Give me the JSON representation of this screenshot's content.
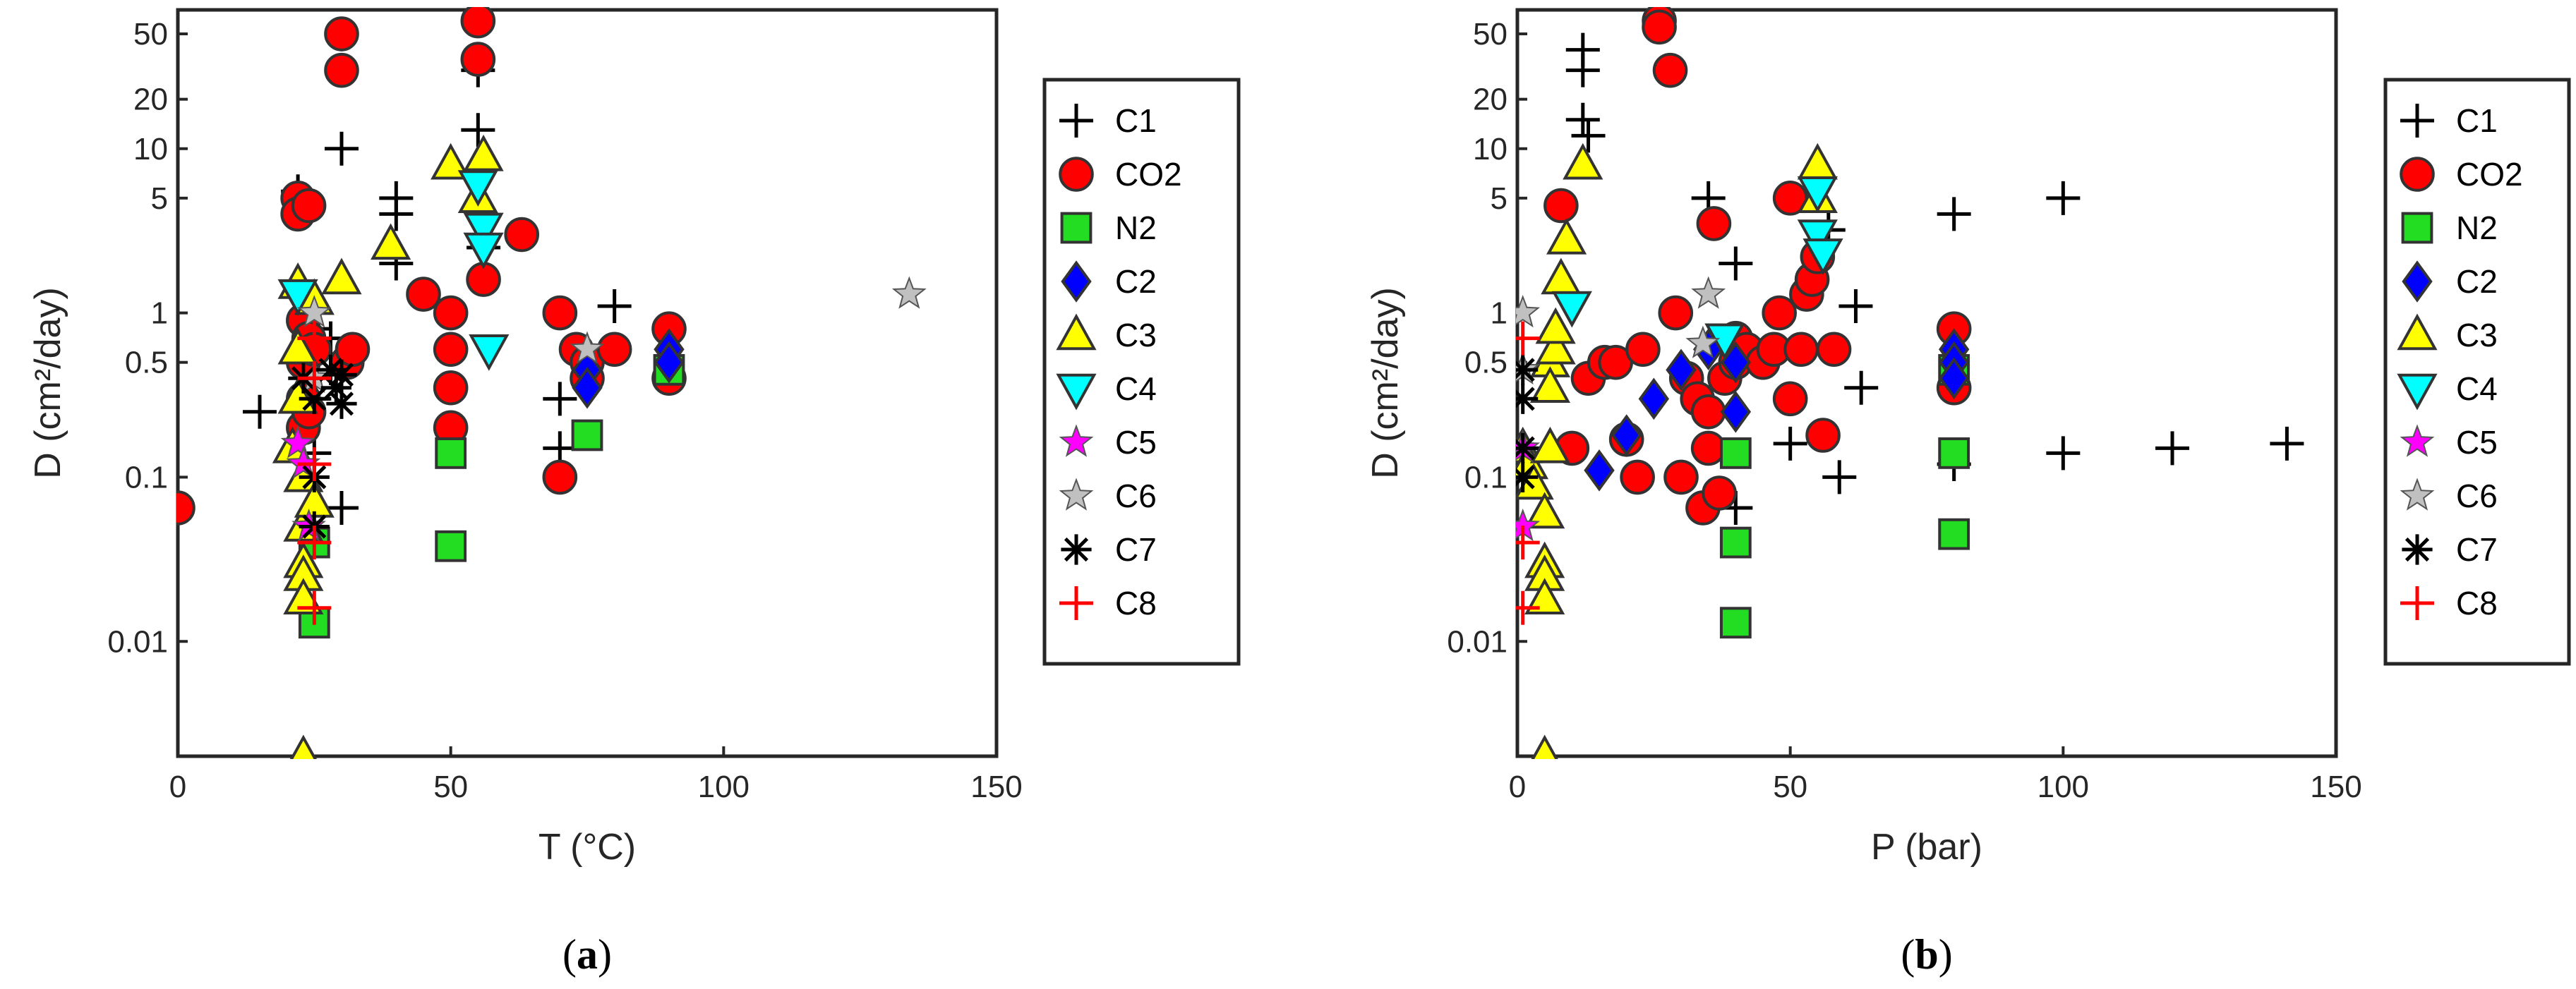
{
  "legend": {
    "entries": [
      {
        "name": "C1",
        "marker": "plus",
        "color": "#000000"
      },
      {
        "name": "CO2",
        "marker": "circle",
        "color": "#ff0000"
      },
      {
        "name": "N2",
        "marker": "square",
        "color": "#22dd22"
      },
      {
        "name": "C2",
        "marker": "diamond",
        "color": "#0000ff"
      },
      {
        "name": "C3",
        "marker": "triangle-up",
        "color": "#ffff00"
      },
      {
        "name": "C4",
        "marker": "triangle-down",
        "color": "#00ffff"
      },
      {
        "name": "C5",
        "marker": "star5",
        "color": "#ff00ff"
      },
      {
        "name": "C6",
        "marker": "star5",
        "color": "#c0c0c0"
      },
      {
        "name": "C7",
        "marker": "asterisk",
        "color": "#000000"
      },
      {
        "name": "C8",
        "marker": "plus",
        "color": "#ff0000"
      }
    ]
  },
  "chart_data": [
    {
      "type": "scatter",
      "panel_label": "(a)",
      "panel_letter": "a",
      "xlabel": "T (°C)",
      "ylabel": "D (cm²/day)",
      "xlim": [
        0,
        150
      ],
      "ylim": [
        0.002,
        70
      ],
      "yscale": "log",
      "xticks": [
        0,
        50,
        100,
        150
      ],
      "yticks": [
        0.01,
        0.1,
        0.5,
        1,
        5,
        10,
        20,
        50
      ],
      "ytick_labels": [
        "0.01",
        "0.1",
        "0.5",
        "1",
        "5",
        "10",
        "20",
        "50"
      ],
      "series": [
        {
          "name": "C1",
          "points": [
            [
              15,
              0.25
            ],
            [
              22,
              5.5
            ],
            [
              25,
              0.8
            ],
            [
              25,
              0.3
            ],
            [
              25,
              0.14
            ],
            [
              28,
              0.7
            ],
            [
              30,
              10
            ],
            [
              30,
              0.065
            ],
            [
              40,
              5
            ],
            [
              40,
              4
            ],
            [
              40,
              2
            ],
            [
              55,
              13
            ],
            [
              55,
              30
            ],
            [
              56,
              2.5
            ],
            [
              70,
              0.3
            ],
            [
              70,
              0.15
            ],
            [
              80,
              1.1
            ]
          ]
        },
        {
          "name": "CO2",
          "points": [
            [
              0,
              0.065
            ],
            [
              22,
              5
            ],
            [
              22,
              4
            ],
            [
              23,
              0.9
            ],
            [
              23,
              0.5
            ],
            [
              23,
              0.3
            ],
            [
              23,
              0.2
            ],
            [
              24,
              4.5
            ],
            [
              24,
              0.7
            ],
            [
              24,
              0.25
            ],
            [
              25,
              0.6
            ],
            [
              30,
              50
            ],
            [
              30,
              30
            ],
            [
              31,
              0.5
            ],
            [
              32,
              0.6
            ],
            [
              45,
              1.3
            ],
            [
              50,
              1
            ],
            [
              50,
              0.6
            ],
            [
              50,
              0.35
            ],
            [
              50,
              0.2
            ],
            [
              55,
              60
            ],
            [
              55,
              35
            ],
            [
              56,
              1.6
            ],
            [
              63,
              3
            ],
            [
              70,
              0.1
            ],
            [
              70,
              1
            ],
            [
              73,
              0.6
            ],
            [
              75,
              0.5
            ],
            [
              75,
              0.4
            ],
            [
              80,
              0.6
            ],
            [
              90,
              0.8
            ],
            [
              90,
              0.4
            ]
          ]
        },
        {
          "name": "N2",
          "points": [
            [
              25,
              0.04
            ],
            [
              25,
              0.013
            ],
            [
              50,
              0.14
            ],
            [
              50,
              0.038
            ],
            [
              75,
              0.18
            ],
            [
              90,
              0.45
            ]
          ]
        },
        {
          "name": "C2",
          "points": [
            [
              75,
              0.45
            ],
            [
              75,
              0.35
            ],
            [
              90,
              0.6
            ],
            [
              90,
              0.5
            ]
          ]
        },
        {
          "name": "C3",
          "points": [
            [
              21,
              0.15
            ],
            [
              22,
              1.5
            ],
            [
              22,
              0.6
            ],
            [
              22,
              0.3
            ],
            [
              23,
              0.1
            ],
            [
              23,
              0.05
            ],
            [
              23,
              0.03
            ],
            [
              23,
              0.025
            ],
            [
              23,
              0.018
            ],
            [
              23,
              0.002
            ],
            [
              25,
              1.2
            ],
            [
              25,
              0.07
            ],
            [
              30,
              1.6
            ],
            [
              39,
              2.6
            ],
            [
              50,
              8
            ],
            [
              55,
              5
            ],
            [
              56,
              9
            ]
          ]
        },
        {
          "name": "C4",
          "points": [
            [
              22,
              1.3
            ],
            [
              55,
              6
            ],
            [
              56,
              3.3
            ],
            [
              56,
              2.5
            ],
            [
              57,
              0.6
            ]
          ]
        },
        {
          "name": "C5",
          "points": [
            [
              22,
              0.16
            ],
            [
              23,
              0.12
            ],
            [
              24,
              0.05
            ]
          ]
        },
        {
          "name": "C6",
          "points": [
            [
              25,
              1
            ],
            [
              25,
              0.4
            ],
            [
              75,
              0.6
            ],
            [
              134,
              1.3
            ]
          ]
        },
        {
          "name": "C7",
          "points": [
            [
              23,
              0.4
            ],
            [
              25,
              0.3
            ],
            [
              25,
              0.1
            ],
            [
              25,
              0.05
            ],
            [
              28,
              0.45
            ],
            [
              29,
              0.35
            ],
            [
              30,
              0.42
            ],
            [
              30,
              0.28
            ]
          ]
        },
        {
          "name": "C8",
          "points": [
            [
              25,
              0.7
            ],
            [
              25,
              0.4
            ],
            [
              25,
              0.12
            ],
            [
              25,
              0.04
            ],
            [
              25,
              0.016
            ]
          ]
        }
      ]
    },
    {
      "type": "scatter",
      "panel_label": "(b)",
      "panel_letter": "b",
      "xlabel": "P (bar)",
      "ylabel": "D (cm²/day)",
      "xlim": [
        0,
        150
      ],
      "ylim": [
        0.002,
        70
      ],
      "yscale": "log",
      "xticks": [
        0,
        50,
        100,
        150
      ],
      "yticks": [
        0.01,
        0.1,
        0.5,
        1,
        5,
        10,
        20,
        50
      ],
      "ytick_labels": [
        "0.01",
        "0.1",
        "0.5",
        "1",
        "5",
        "10",
        "20",
        "50"
      ],
      "series": [
        {
          "name": "C1",
          "points": [
            [
              1,
              0.15
            ],
            [
              1,
              0.1
            ],
            [
              12,
              40
            ],
            [
              12,
              30
            ],
            [
              12,
              15
            ],
            [
              13,
              12
            ],
            [
              35,
              5
            ],
            [
              40,
              2
            ],
            [
              40,
              0.065
            ],
            [
              50,
              0.16
            ],
            [
              57,
              3.2
            ],
            [
              59,
              0.1
            ],
            [
              62,
              1.1
            ],
            [
              63,
              0.35
            ],
            [
              80,
              4
            ],
            [
              80,
              0.12
            ],
            [
              100,
              5
            ],
            [
              100,
              0.14
            ],
            [
              120,
              0.15
            ],
            [
              141,
              0.16
            ]
          ]
        },
        {
          "name": "CO2",
          "points": [
            [
              8,
              4.5
            ],
            [
              10,
              0.15
            ],
            [
              13,
              0.4
            ],
            [
              16,
              0.5
            ],
            [
              18,
              0.5
            ],
            [
              20,
              0.17
            ],
            [
              22,
              0.1
            ],
            [
              23,
              0.6
            ],
            [
              26,
              60
            ],
            [
              26,
              55
            ],
            [
              28,
              30
            ],
            [
              29,
              1
            ],
            [
              30,
              0.1
            ],
            [
              31,
              0.4
            ],
            [
              33,
              0.3
            ],
            [
              34,
              0.065
            ],
            [
              35,
              0.15
            ],
            [
              35,
              0.25
            ],
            [
              36,
              3.5
            ],
            [
              37,
              0.08
            ],
            [
              38,
              0.4
            ],
            [
              40,
              0.5
            ],
            [
              40,
              0.7
            ],
            [
              42,
              0.6
            ],
            [
              45,
              0.5
            ],
            [
              47,
              0.6
            ],
            [
              48,
              1
            ],
            [
              50,
              5
            ],
            [
              50,
              0.3
            ],
            [
              52,
              0.6
            ],
            [
              53,
              1.3
            ],
            [
              54,
              1.6
            ],
            [
              55,
              2.2
            ],
            [
              56,
              0.18
            ],
            [
              58,
              0.6
            ],
            [
              80,
              0.8
            ],
            [
              80,
              0.35
            ]
          ]
        },
        {
          "name": "N2",
          "points": [
            [
              40,
              0.04
            ],
            [
              40,
              0.013
            ],
            [
              40,
              0.14
            ],
            [
              80,
              0.14
            ],
            [
              80,
              0.045
            ],
            [
              80,
              0.45
            ]
          ]
        },
        {
          "name": "C2",
          "points": [
            [
              15,
              0.11
            ],
            [
              20,
              0.18
            ],
            [
              25,
              0.3
            ],
            [
              30,
              0.45
            ],
            [
              35,
              0.6
            ],
            [
              40,
              0.5
            ],
            [
              40,
              0.25
            ],
            [
              80,
              0.6
            ],
            [
              80,
              0.5
            ],
            [
              80,
              0.4
            ]
          ]
        },
        {
          "name": "C3",
          "points": [
            [
              1,
              0.15
            ],
            [
              2,
              0.12
            ],
            [
              3,
              0.09
            ],
            [
              5,
              0.06
            ],
            [
              5,
              0.03
            ],
            [
              5,
              0.025
            ],
            [
              5,
              0.018
            ],
            [
              5,
              0.002
            ],
            [
              6,
              0.5
            ],
            [
              6,
              0.35
            ],
            [
              6,
              0.15
            ],
            [
              7,
              0.6
            ],
            [
              7,
              0.8
            ],
            [
              8,
              1.6
            ],
            [
              9,
              2.8
            ],
            [
              12,
              8
            ],
            [
              55,
              8
            ],
            [
              55,
              5
            ]
          ]
        },
        {
          "name": "C4",
          "points": [
            [
              10,
              1.1
            ],
            [
              38,
              0.7
            ],
            [
              55,
              5.5
            ],
            [
              55,
              3
            ],
            [
              56,
              2.3
            ]
          ]
        },
        {
          "name": "C5",
          "points": [
            [
              1,
              0.05
            ],
            [
              1,
              0.15
            ]
          ]
        },
        {
          "name": "C6",
          "points": [
            [
              1,
              1
            ],
            [
              1,
              0.45
            ],
            [
              34,
              0.65
            ],
            [
              35,
              1.3
            ]
          ]
        },
        {
          "name": "C7",
          "points": [
            [
              1,
              0.45
            ],
            [
              1,
              0.3
            ],
            [
              1,
              0.15
            ],
            [
              1,
              0.1
            ]
          ]
        },
        {
          "name": "C8",
          "points": [
            [
              1,
              0.7
            ],
            [
              1,
              0.04
            ],
            [
              1,
              0.016
            ]
          ]
        }
      ]
    }
  ]
}
